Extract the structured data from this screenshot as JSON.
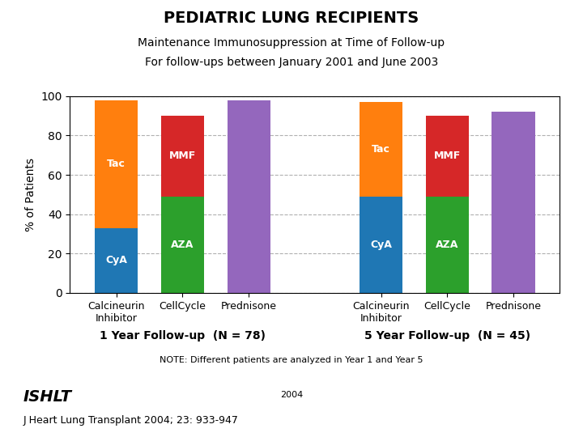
{
  "chart_data": {
    "type": "bar",
    "stacked": true,
    "title": "PEDIATRIC LUNG RECIPIENTS",
    "subtitle": [
      "Maintenance Immunosuppression at Time of Follow-up",
      "For follow-ups between January 2001 and June 2003"
    ],
    "y_label": "% of Patients",
    "groups": [
      {
        "label": "1 Year Follow-up  (N = 78)",
        "categories": [
          "Calcineurin\nInhibitor",
          "CellCycle",
          "Prednisone"
        ],
        "series": [
          {
            "name": "CyA",
            "color": "#1f77b4",
            "values": [
              33,
              null,
              null
            ]
          },
          {
            "name": "Tac",
            "color": "#ff7f0e",
            "values": [
              65,
              null,
              null
            ]
          },
          {
            "name": "AZA",
            "color": "#2ca02c",
            "values": [
              null,
              49,
              null
            ]
          },
          {
            "name": "MMF",
            "color": "#d62728",
            "values": [
              null,
              41,
              null
            ]
          },
          {
            "color": "#9467bd",
            "values": [
              null,
              null,
              98
            ]
          }
        ]
      },
      {
        "label": "5 Year Follow-up  (N = 45)",
        "categories": [
          "Calcineurin\nInhibitor",
          "CellCycle",
          "Prednisone"
        ],
        "series": [
          {
            "name": "CyA",
            "color": "#1f77b4",
            "values": [
              49,
              null,
              null
            ]
          },
          {
            "name": "Tac",
            "color": "#ff7f0e",
            "values": [
              48,
              null,
              null
            ]
          },
          {
            "name": "AZA",
            "color": "#2ca02c",
            "values": [
              null,
              49,
              null
            ]
          },
          {
            "name": "MMF",
            "color": "#d62728",
            "values": [
              null,
              41,
              null
            ]
          },
          {
            "color": "#9467bd",
            "values": [
              null,
              null,
              92
            ]
          }
        ]
      }
    ],
    "ylim": [
      0,
      100
    ],
    "yticks": [
      0,
      20,
      40,
      60,
      80,
      100
    ],
    "grid": true,
    "note": "NOTE: Different patients are analyzed in Year 1 and Year 5",
    "annotations": [
      "ISHLT",
      "2004",
      "J Heart Lung Transplant 2004; 23: 933-947"
    ]
  }
}
